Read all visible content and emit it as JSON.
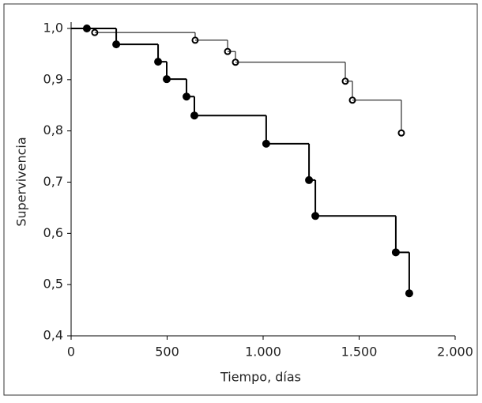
{
  "chart_data": {
    "type": "step",
    "xlabel": "Tiempo, días",
    "ylabel": "Supervivencia",
    "xlim": [
      0,
      2000
    ],
    "ylim": [
      0.4,
      1.0
    ],
    "xticks": [
      0,
      500,
      {
        "value": 1000,
        "label": "1.000"
      },
      {
        "value": 1500,
        "label": "1.500"
      },
      {
        "value": 2000,
        "label": "2.000"
      }
    ],
    "yticks": [
      {
        "value": 0.4,
        "label": "0,4"
      },
      {
        "value": 0.5,
        "label": "0,5"
      },
      {
        "value": 0.6,
        "label": "0,6"
      },
      {
        "value": 0.7,
        "label": "0,7"
      },
      {
        "value": 0.8,
        "label": "0,8"
      },
      {
        "value": 0.9,
        "label": "0,9"
      },
      {
        "value": 1.0,
        "label": "1,0"
      }
    ],
    "series": [
      {
        "color": "#000000",
        "marker": "filled",
        "linewidth": 2,
        "x": [
          82,
          235,
          453,
          498,
          601,
          642,
          1016,
          1239,
          1272,
          1691,
          1761
        ],
        "values": [
          1.0,
          0.969,
          0.935,
          0.901,
          0.867,
          0.83,
          0.775,
          0.704,
          0.634,
          0.563,
          0.483
        ]
      },
      {
        "color": "#000000",
        "marker": "open",
        "linewidth": 1,
        "x": [
          123,
          646,
          815,
          856,
          1428,
          1465,
          1720
        ],
        "values": [
          0.992,
          0.977,
          0.955,
          0.934,
          0.897,
          0.86,
          0.796
        ]
      }
    ]
  }
}
